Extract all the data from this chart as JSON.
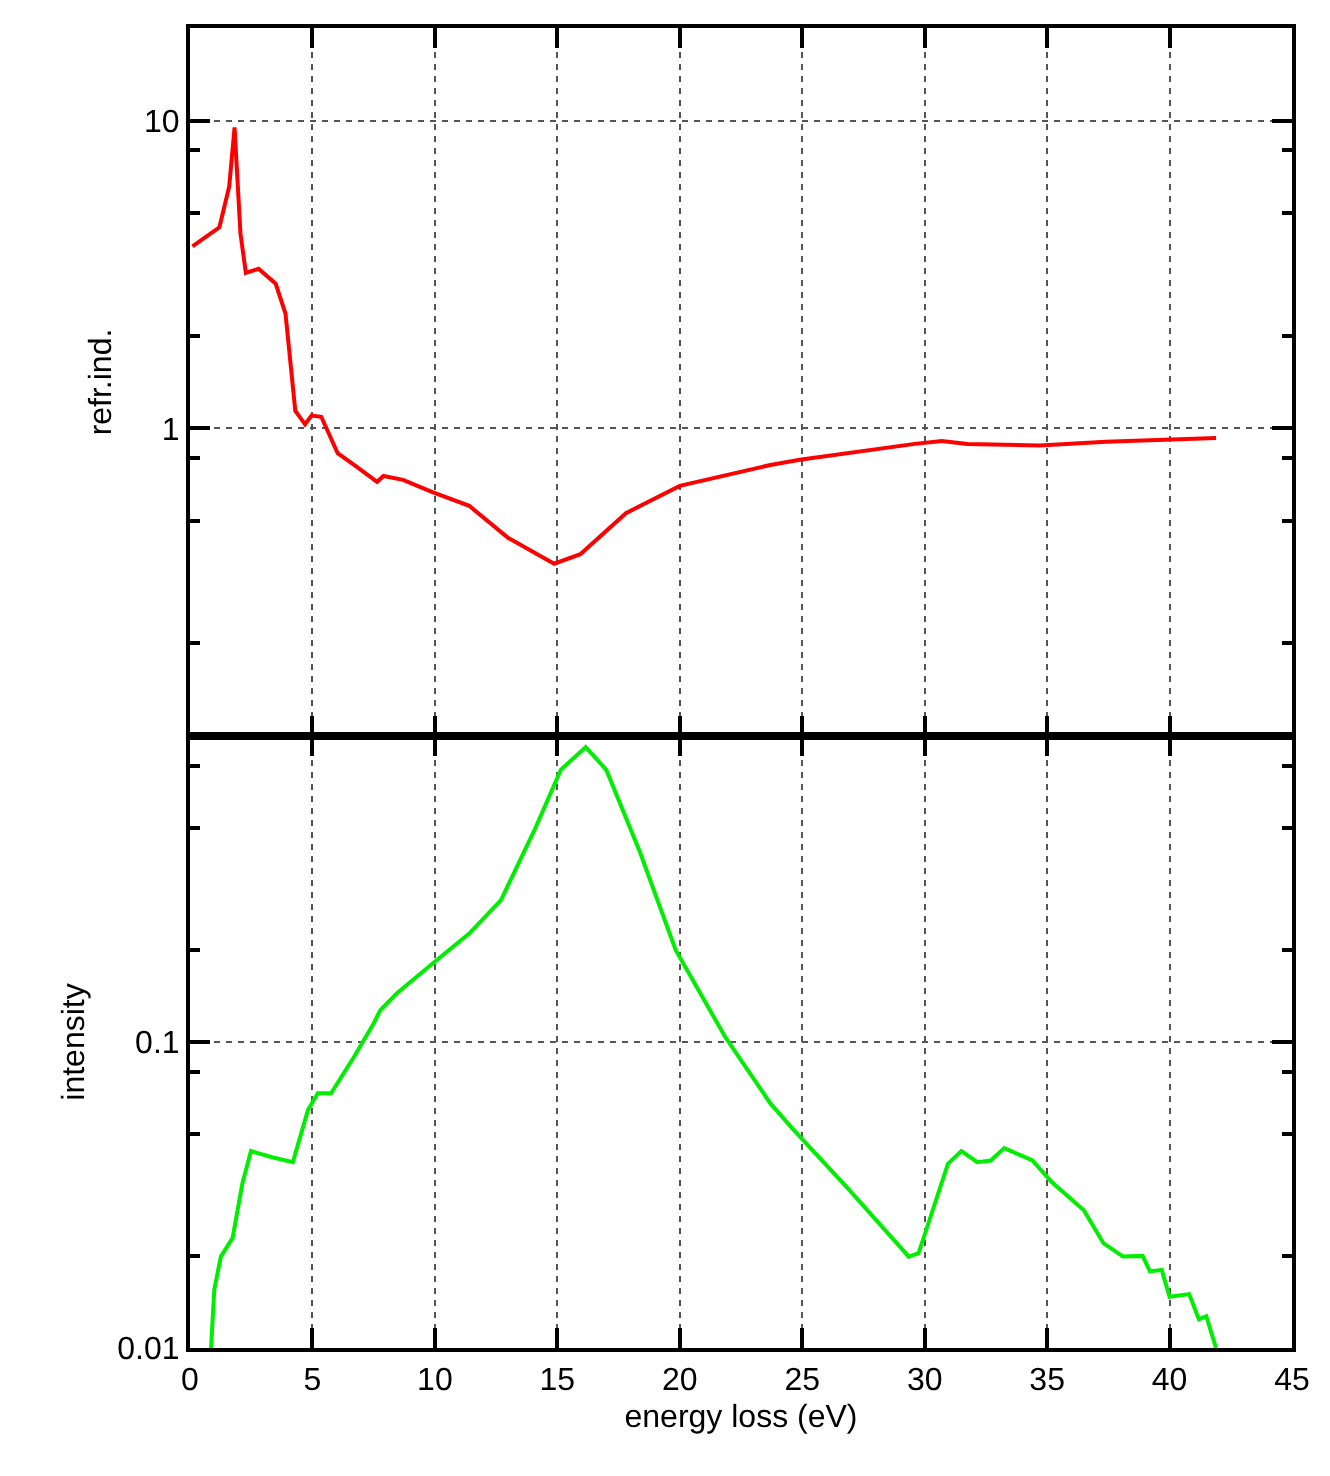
{
  "chart_data": [
    {
      "type": "line",
      "ylabel": "refr.ind.",
      "log": true,
      "grid": true,
      "tick_labels": "y",
      "xlim": [
        0,
        45
      ],
      "xticks": [
        0,
        5,
        10,
        15,
        20,
        25,
        30,
        35,
        40,
        45
      ],
      "ylim": [
        0.1,
        20
      ],
      "yticks": [
        {
          "value": 0.2,
          "label": null
        },
        {
          "value": 0.5,
          "label": null
        },
        {
          "value": 0.8,
          "label": null
        },
        1,
        {
          "value": 2,
          "label": null
        },
        {
          "value": 5,
          "label": null
        },
        {
          "value": 8,
          "label": null
        },
        10
      ],
      "series": [
        {
          "color": "#ff0000",
          "x": [
            0.1,
            1.2,
            1.6,
            1.82,
            2.06,
            2.28,
            2.8,
            3.5,
            3.9,
            4.3,
            4.7,
            4.96,
            5.36,
            6.03,
            6.7,
            7.64,
            7.9,
            8.7,
            9.9,
            11.4,
            13.0,
            14.87,
            15.94,
            17.8,
            20.0,
            23.7,
            24.9,
            29.6,
            30.7,
            31.75,
            34.7,
            37.4,
            41.9
          ],
          "values": [
            3.9,
            4.5,
            6.1,
            9.5,
            4.3,
            3.2,
            3.3,
            2.95,
            2.36,
            1.14,
            1.03,
            1.1,
            1.09,
            0.83,
            0.76,
            0.67,
            0.7,
            0.68,
            0.62,
            0.56,
            0.44,
            0.363,
            0.39,
            0.53,
            0.65,
            0.76,
            0.79,
            0.89,
            0.91,
            0.89,
            0.88,
            0.905,
            0.93
          ]
        }
      ]
    },
    {
      "type": "line",
      "xlabel": "energy loss (eV)",
      "ylabel": "intensity",
      "log": true,
      "grid": true,
      "xlim": [
        0,
        45
      ],
      "xticks": [
        0,
        5,
        10,
        15,
        20,
        25,
        30,
        35,
        40,
        45
      ],
      "ylim": [
        0.01,
        1
      ],
      "yticks": [
        0.01,
        {
          "value": 0.02,
          "label": null
        },
        {
          "value": 0.05,
          "label": null
        },
        {
          "value": 0.08,
          "label": null
        },
        0.1,
        {
          "value": 0.2,
          "label": null
        },
        {
          "value": 0.5,
          "label": null
        },
        {
          "value": 0.8,
          "label": null
        }
      ],
      "series": [
        {
          "color": "#00ee00",
          "x": [
            0.86,
            0.99,
            1.26,
            1.74,
            2.14,
            2.49,
            3.35,
            4.2,
            4.82,
            5.22,
            5.76,
            6.7,
            7.5,
            7.77,
            8.44,
            9.92,
            11.4,
            12.7,
            14.07,
            15.14,
            16.16,
            17.0,
            18.36,
            19.83,
            21.85,
            23.7,
            24.65,
            26.9,
            29.35,
            29.75,
            30.95,
            31.5,
            32.15,
            32.7,
            33.25,
            34.4,
            35.2,
            36.5,
            37.3,
            38.1,
            38.9,
            39.2,
            39.68,
            40.0,
            40.8,
            41.2,
            41.5,
            41.9
          ],
          "values": [
            0.01,
            0.0155,
            0.0199,
            0.0229,
            0.0345,
            0.044,
            0.042,
            0.0405,
            0.06,
            0.068,
            0.068,
            0.0895,
            0.115,
            0.127,
            0.144,
            0.181,
            0.226,
            0.291,
            0.493,
            0.775,
            0.92,
            0.775,
            0.42,
            0.2,
            0.104,
            0.063,
            0.0516,
            0.033,
            0.0199,
            0.0204,
            0.04,
            0.044,
            0.0405,
            0.041,
            0.045,
            0.041,
            0.0348,
            0.0282,
            0.022,
            0.0199,
            0.02,
            0.0178,
            0.018,
            0.0147,
            0.015,
            0.0124,
            0.0127,
            0.01
          ]
        }
      ]
    }
  ]
}
